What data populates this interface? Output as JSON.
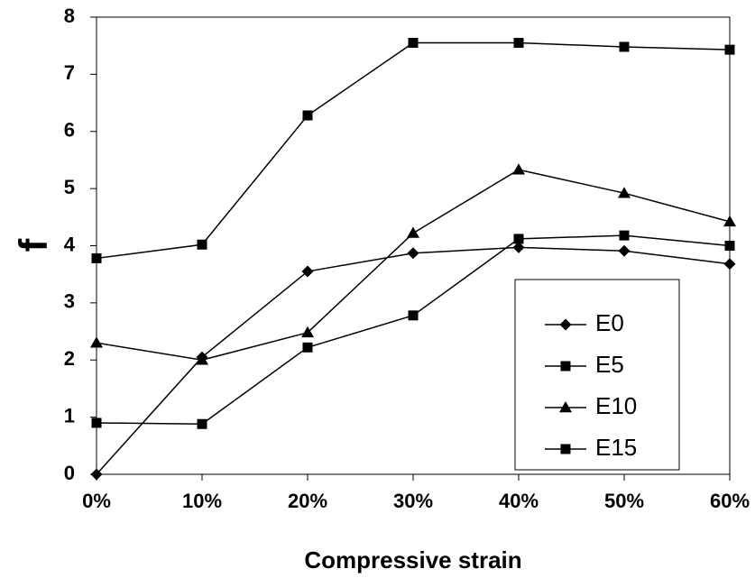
{
  "chart_data": {
    "type": "line",
    "title": "",
    "xlabel": "Compressive strain",
    "ylabel": "f",
    "categories": [
      "0%",
      "10%",
      "20%",
      "30%",
      "40%",
      "50%",
      "60%"
    ],
    "yticks": [
      "0",
      "1",
      "2",
      "3",
      "4",
      "5",
      "6",
      "7",
      "8"
    ],
    "ylim": [
      0,
      8
    ],
    "grid": false,
    "legend": "bottom-right",
    "line_color": "#000000",
    "series": [
      {
        "name": "E0",
        "marker": "diamond",
        "values": [
          0.0,
          2.05,
          3.55,
          3.87,
          3.97,
          3.91,
          3.68
        ]
      },
      {
        "name": "E5",
        "marker": "square",
        "values": [
          0.9,
          0.88,
          2.22,
          2.78,
          4.12,
          4.18,
          4.0
        ]
      },
      {
        "name": "E10",
        "marker": "triangle",
        "values": [
          2.3,
          2.0,
          2.48,
          4.22,
          5.33,
          4.92,
          4.42
        ]
      },
      {
        "name": "E15",
        "marker": "square",
        "values": [
          3.78,
          4.02,
          6.28,
          7.55,
          7.55,
          7.48,
          7.43
        ]
      }
    ]
  }
}
